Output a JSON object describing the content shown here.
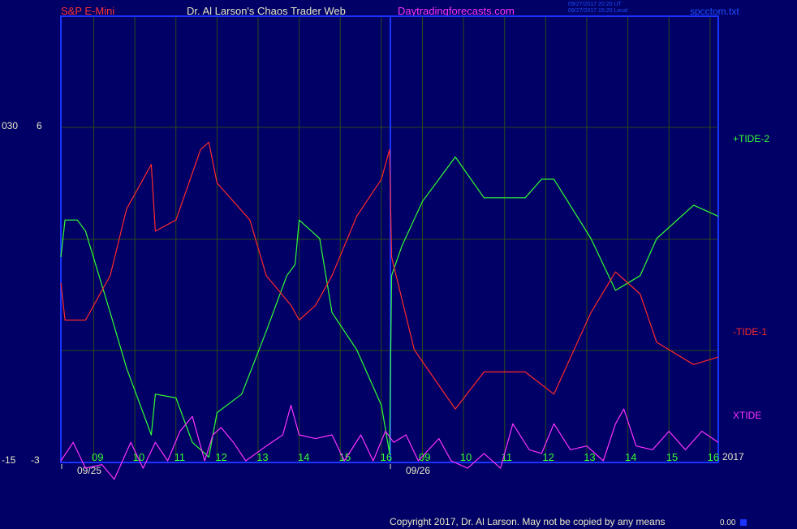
{
  "header": {
    "symbol": "S&P E-Mini",
    "site": "Dr. Al Larson's Chaos Trader Web",
    "url": "Daytradingforecasts.com",
    "time_ut": "09/27/2017 20:20 UT",
    "time_local": "09/27/2017 15:20 Local",
    "file": "spcctom.txt"
  },
  "axis": {
    "y_left_top_1": "030",
    "y_left_top_2": "6",
    "y_left_bottom_1": "-15",
    "y_left_bottom_2": "-3",
    "year": "2017",
    "dates": [
      "09/25",
      "09/26"
    ],
    "hours_day1": [
      "09",
      "10",
      "11",
      "12",
      "13",
      "14",
      "15",
      "16"
    ],
    "hours_day2": [
      "09",
      "10",
      "11",
      "12",
      "13",
      "14",
      "15",
      "16"
    ]
  },
  "footer": {
    "copyright": "Copyright 2017, Dr. Al Larson. May not be copied by any means",
    "counter": "0.00"
  },
  "colors": {
    "background": "#000066",
    "frame": "#1a33ff",
    "grid": "#2a4a1a",
    "tide_plus": "#33ff33",
    "tide_minus": "#ff2a2a",
    "xtide": "#ff33ff",
    "title_red": "#ff3333",
    "title_white": "#e8e8c8",
    "url_magenta": "#ff33ff",
    "hour_labels": "#33ff33"
  },
  "chart_data": {
    "type": "line",
    "x_unit": "session hours (0 = 09/25 08:30, 16 = 09/26 16:30)",
    "xlim": [
      0,
      16
    ],
    "ylim": [
      -3,
      6
    ],
    "series": [
      {
        "name": "+TIDE-2",
        "points": [
          [
            0,
            2.5
          ],
          [
            0.1,
            3.5
          ],
          [
            0.4,
            3.5
          ],
          [
            0.6,
            3.2
          ],
          [
            1.2,
            1.0
          ],
          [
            1.6,
            -0.5
          ],
          [
            2.2,
            -2.3
          ],
          [
            2.3,
            -1.2
          ],
          [
            2.8,
            -1.3
          ],
          [
            3.2,
            -2.5
          ],
          [
            3.6,
            -2.9
          ],
          [
            3.8,
            -1.7
          ],
          [
            4.4,
            -1.2
          ],
          [
            5.0,
            0.5
          ],
          [
            5.5,
            2.0
          ],
          [
            5.7,
            2.3
          ],
          [
            5.8,
            3.5
          ],
          [
            6.3,
            3.0
          ],
          [
            6.6,
            1.0
          ],
          [
            7.2,
            0.0
          ],
          [
            7.8,
            -1.5
          ],
          [
            8.0,
            -2.8
          ],
          [
            8.05,
            2.0
          ],
          [
            8.3,
            2.8
          ],
          [
            8.8,
            4.0
          ],
          [
            9.6,
            5.2
          ],
          [
            10.3,
            4.1
          ],
          [
            11.3,
            4.1
          ],
          [
            11.7,
            4.6
          ],
          [
            12.0,
            4.6
          ],
          [
            12.9,
            3.0
          ],
          [
            13.5,
            1.6
          ],
          [
            14.1,
            2.0
          ],
          [
            14.5,
            3.0
          ],
          [
            15.4,
            3.9
          ],
          [
            16,
            3.6
          ]
        ]
      },
      {
        "name": "-TIDE-1",
        "points": [
          [
            0,
            1.8
          ],
          [
            0.1,
            0.8
          ],
          [
            0.6,
            0.8
          ],
          [
            1.2,
            2.0
          ],
          [
            1.6,
            3.8
          ],
          [
            2.2,
            5.0
          ],
          [
            2.3,
            3.2
          ],
          [
            2.8,
            3.5
          ],
          [
            3.4,
            5.4
          ],
          [
            3.6,
            5.6
          ],
          [
            3.8,
            4.5
          ],
          [
            4.6,
            3.5
          ],
          [
            5.0,
            2.0
          ],
          [
            5.6,
            1.2
          ],
          [
            5.8,
            0.8
          ],
          [
            6.2,
            1.2
          ],
          [
            6.6,
            2.0
          ],
          [
            7.2,
            3.6
          ],
          [
            7.8,
            4.6
          ],
          [
            8.0,
            5.4
          ],
          [
            8.05,
            2.5
          ],
          [
            8.6,
            0.0
          ],
          [
            9.6,
            -1.6
          ],
          [
            10.3,
            -0.6
          ],
          [
            11.3,
            -0.6
          ],
          [
            12.0,
            -1.2
          ],
          [
            12.9,
            1.0
          ],
          [
            13.5,
            2.1
          ],
          [
            14.1,
            1.5
          ],
          [
            14.5,
            0.2
          ],
          [
            15.4,
            -0.4
          ],
          [
            16,
            -0.2
          ]
        ]
      },
      {
        "name": "XTIDE",
        "points": [
          [
            0,
            -3.0
          ],
          [
            0.3,
            -2.5
          ],
          [
            0.6,
            -3.2
          ],
          [
            1.0,
            -3.1
          ],
          [
            1.3,
            -3.5
          ],
          [
            1.7,
            -2.5
          ],
          [
            2.0,
            -3.2
          ],
          [
            2.3,
            -2.5
          ],
          [
            2.6,
            -3.0
          ],
          [
            2.9,
            -2.2
          ],
          [
            3.2,
            -1.8
          ],
          [
            3.5,
            -3.0
          ],
          [
            3.7,
            -2.3
          ],
          [
            3.9,
            -2.1
          ],
          [
            4.2,
            -2.5
          ],
          [
            4.5,
            -3.0
          ],
          [
            5.0,
            -2.6
          ],
          [
            5.4,
            -2.3
          ],
          [
            5.6,
            -1.5
          ],
          [
            5.8,
            -2.3
          ],
          [
            6.2,
            -2.4
          ],
          [
            6.6,
            -2.3
          ],
          [
            6.9,
            -3.0
          ],
          [
            7.3,
            -2.3
          ],
          [
            7.6,
            -3.0
          ],
          [
            7.9,
            -2.2
          ],
          [
            8.1,
            -2.5
          ],
          [
            8.4,
            -2.3
          ],
          [
            8.7,
            -3.0
          ],
          [
            9.2,
            -2.4
          ],
          [
            9.5,
            -3.0
          ],
          [
            9.9,
            -3.2
          ],
          [
            10.3,
            -2.8
          ],
          [
            10.7,
            -3.2
          ],
          [
            11.0,
            -2.0
          ],
          [
            11.4,
            -2.7
          ],
          [
            11.7,
            -2.8
          ],
          [
            12.0,
            -2.0
          ],
          [
            12.4,
            -2.7
          ],
          [
            12.8,
            -2.6
          ],
          [
            13.2,
            -3.0
          ],
          [
            13.5,
            -2.0
          ],
          [
            13.7,
            -1.6
          ],
          [
            14.0,
            -2.6
          ],
          [
            14.4,
            -2.7
          ],
          [
            14.8,
            -2.2
          ],
          [
            15.2,
            -2.7
          ],
          [
            15.6,
            -2.2
          ],
          [
            16,
            -2.5
          ]
        ]
      }
    ]
  }
}
